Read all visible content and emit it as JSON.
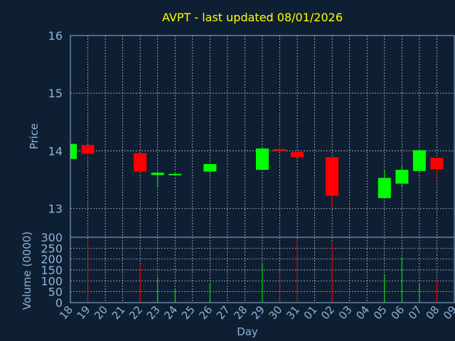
{
  "colors": {
    "background": "#0f1f33",
    "axis_text": "#8fb3d9",
    "title": "#ffff00",
    "grid": "#ffffff",
    "up": "#00ff00",
    "down": "#ff0000"
  },
  "chart_data": [
    {
      "type": "candlestick",
      "title": "AVPT - last updated 08/01/2026",
      "ylabel": "Price",
      "ylim": [
        12.5,
        16
      ],
      "y_ticks": [
        "13",
        "14",
        "15",
        "16"
      ],
      "grid": true,
      "candles": [
        {
          "day": "18",
          "open": 13.86,
          "high": 14.13,
          "low": 13.86,
          "close": 14.12
        },
        {
          "day": "19",
          "open": 14.1,
          "high": 14.1,
          "low": 13.9,
          "close": 13.95
        },
        {
          "day": "22",
          "open": 13.96,
          "high": 13.96,
          "low": 13.62,
          "close": 13.64
        },
        {
          "day": "23",
          "open": 13.58,
          "high": 13.65,
          "low": 13.37,
          "close": 13.62
        },
        {
          "day": "24",
          "open": 13.58,
          "high": 13.62,
          "low": 13.56,
          "close": 13.6
        },
        {
          "day": "26",
          "open": 13.64,
          "high": 13.78,
          "low": 13.62,
          "close": 13.77
        },
        {
          "day": "29",
          "open": 13.67,
          "high": 14.05,
          "low": 13.67,
          "close": 14.04
        },
        {
          "day": "30",
          "open": 14.03,
          "high": 14.08,
          "low": 13.98,
          "close": 14.0
        },
        {
          "day": "31",
          "open": 13.98,
          "high": 13.98,
          "low": 13.88,
          "close": 13.89
        },
        {
          "day": "02",
          "open": 13.89,
          "high": 13.89,
          "low": 13.03,
          "close": 13.22
        },
        {
          "day": "05",
          "open": 13.18,
          "high": 13.68,
          "low": 13.18,
          "close": 13.53
        },
        {
          "day": "06",
          "open": 13.43,
          "high": 13.75,
          "low": 13.37,
          "close": 13.67
        },
        {
          "day": "07",
          "open": 13.65,
          "high": 14.02,
          "low": 13.64,
          "close": 14.01
        },
        {
          "day": "08",
          "open": 13.88,
          "high": 13.88,
          "low": 13.52,
          "close": 13.68
        }
      ]
    },
    {
      "type": "bar",
      "ylabel": "Volume (0000)",
      "xlabel": "Day",
      "ylim": [
        0,
        300
      ],
      "y_ticks": [
        "0",
        "50",
        "100",
        "150",
        "200",
        "250",
        "300"
      ],
      "grid": true,
      "categories": [
        "18",
        "19",
        "20",
        "21",
        "22",
        "23",
        "24",
        "25",
        "26",
        "27",
        "28",
        "29",
        "30",
        "31",
        "01",
        "02",
        "03",
        "04",
        "05",
        "06",
        "07",
        "08",
        "09"
      ],
      "bars": [
        {
          "day": "19",
          "value": 292,
          "direction": "down"
        },
        {
          "day": "22",
          "value": 178,
          "direction": "down"
        },
        {
          "day": "23",
          "value": 118,
          "direction": "up"
        },
        {
          "day": "24",
          "value": 62,
          "direction": "up"
        },
        {
          "day": "26",
          "value": 85,
          "direction": "up"
        },
        {
          "day": "29",
          "value": 185,
          "direction": "up"
        },
        {
          "day": "30",
          "value": 135,
          "direction": "down"
        },
        {
          "day": "31",
          "value": 292,
          "direction": "down"
        },
        {
          "day": "02",
          "value": 275,
          "direction": "down"
        },
        {
          "day": "05",
          "value": 130,
          "direction": "up"
        },
        {
          "day": "06",
          "value": 210,
          "direction": "up"
        },
        {
          "day": "07",
          "value": 90,
          "direction": "up"
        },
        {
          "day": "08",
          "value": 105,
          "direction": "down"
        }
      ]
    }
  ]
}
